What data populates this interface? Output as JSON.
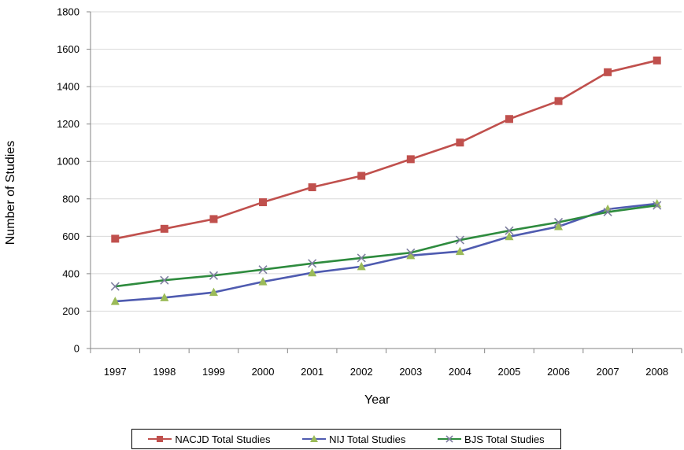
{
  "chart_data": {
    "type": "line",
    "title": "",
    "xlabel": "Year",
    "ylabel": "Number of Studies",
    "categories": [
      "1997",
      "1998",
      "1999",
      "2000",
      "2001",
      "2002",
      "2003",
      "2004",
      "2005",
      "2006",
      "2007",
      "2008"
    ],
    "ylim": [
      0,
      1800
    ],
    "yticks": [
      0,
      200,
      400,
      600,
      800,
      1000,
      1200,
      1400,
      1600,
      1800
    ],
    "grid": true,
    "legend_position": "bottom",
    "series": [
      {
        "name": "NACJD Total Studies",
        "color": "#c0504d",
        "marker": "square",
        "values": [
          587,
          640,
          692,
          782,
          862,
          923,
          1012,
          1101,
          1227,
          1323,
          1477,
          1540
        ]
      },
      {
        "name": "NIJ Total Studies",
        "color": "#4f5bb0",
        "marker": "triangle",
        "marker_color": "#9bbb59",
        "values": [
          252,
          272,
          300,
          357,
          405,
          438,
          497,
          519,
          598,
          652,
          745,
          774
        ]
      },
      {
        "name": "BJS Total Studies",
        "color": "#2e8b3e",
        "marker": "x",
        "marker_color": "#7f7fa0",
        "values": [
          332,
          365,
          390,
          422,
          455,
          484,
          512,
          580,
          630,
          675,
          730,
          765
        ]
      }
    ]
  }
}
